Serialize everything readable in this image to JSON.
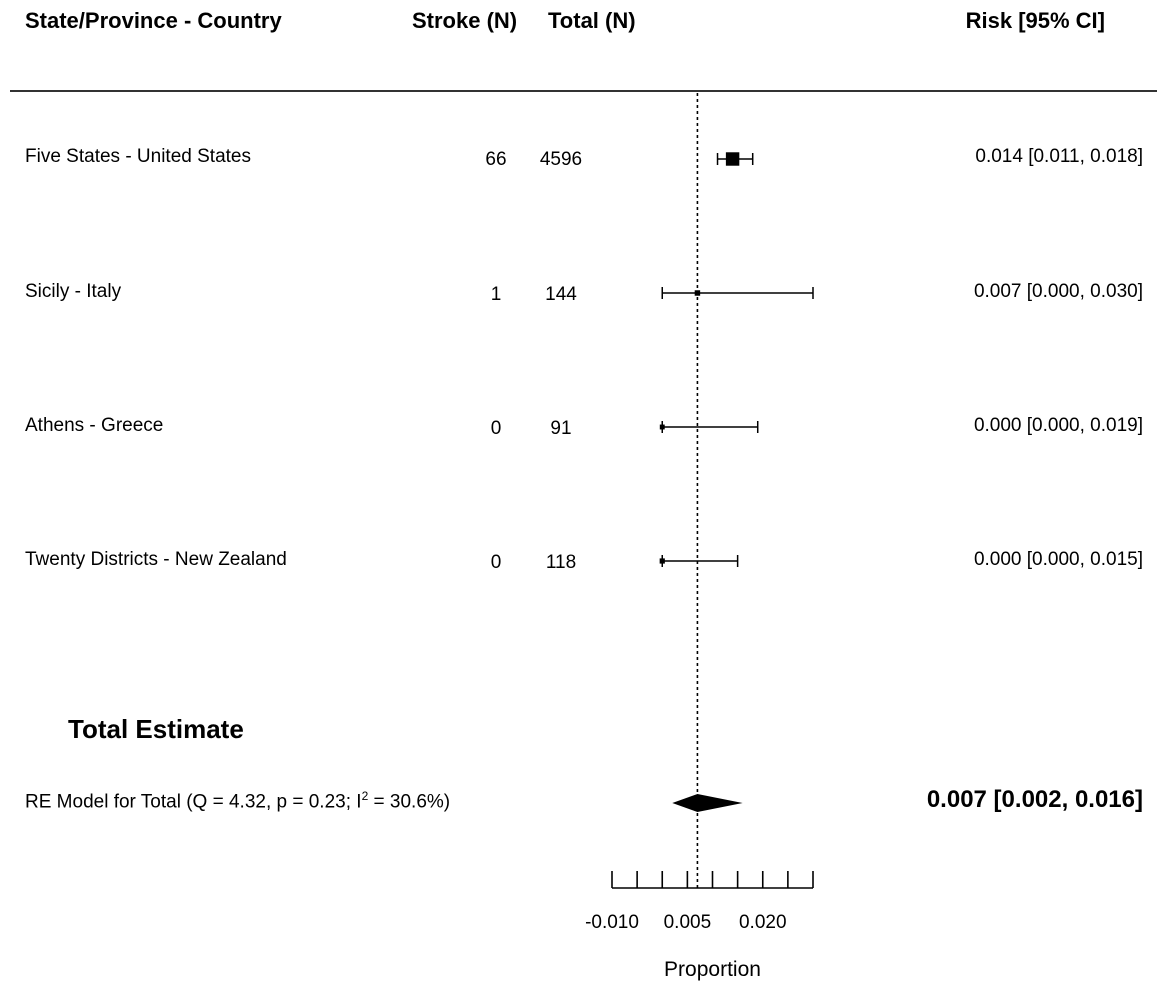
{
  "headers": {
    "study": "State/Province - Country",
    "events": "Stroke (N)",
    "total": "Total (N)",
    "estimate": "Risk [95% CI]"
  },
  "chart_data": {
    "type": "forest",
    "xlabel": "Proportion",
    "xlim": [
      -0.01,
      0.03
    ],
    "ticks": [
      -0.01,
      -0.005,
      0.0,
      0.005,
      0.01,
      0.015,
      0.02,
      0.025,
      0.03
    ],
    "tick_labels": [
      {
        "value": -0.01,
        "label": "-0.010"
      },
      {
        "value": 0.005,
        "label": "0.005"
      },
      {
        "value": 0.02,
        "label": "0.020"
      }
    ],
    "reference_line": 0.007,
    "studies": [
      {
        "label": "Five States - United States",
        "events": "66",
        "total": "4596",
        "estimate": 0.014,
        "lower": 0.011,
        "upper": 0.018,
        "ci_text": "0.014 [0.011, 0.018]",
        "weight": 0.9
      },
      {
        "label": "Sicily - Italy",
        "events": "1",
        "total": "144",
        "estimate": 0.007,
        "lower": 0.0,
        "upper": 0.03,
        "ci_text": "0.007 [0.000, 0.030]",
        "weight": 0.05
      },
      {
        "label": "Athens - Greece",
        "events": "0",
        "total": "91",
        "estimate": 0.0,
        "lower": 0.0,
        "upper": 0.019,
        "ci_text": "0.000 [0.000, 0.019]",
        "weight": 0.03
      },
      {
        "label": "Twenty Districts - New Zealand",
        "events": "0",
        "total": "118",
        "estimate": 0.0,
        "lower": 0.0,
        "upper": 0.015,
        "ci_text": "0.000 [0.000, 0.015]",
        "weight": 0.04
      }
    ],
    "total_heading": "Total Estimate",
    "summary": {
      "label_prefix": "RE Model for Total (Q = 4.32, p = 0.23; I",
      "label_sup": "2",
      "label_suffix": " = 30.6%)",
      "estimate": 0.007,
      "lower": 0.002,
      "upper": 0.016,
      "ci_text": "0.007 [0.002, 0.016]"
    }
  }
}
